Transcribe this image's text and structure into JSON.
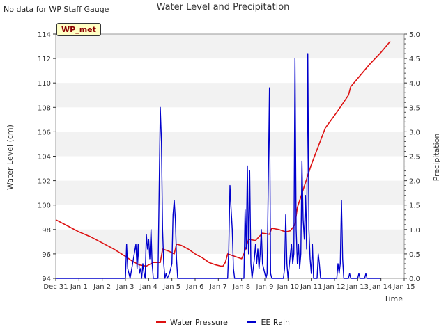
{
  "header": {
    "note": "No data for WP Staff Gauge",
    "title": "Water Level and Precipitation",
    "badge": "WP_met"
  },
  "legend": {
    "items": [
      {
        "label": "Water Pressure",
        "color": "#dd1111"
      },
      {
        "label": "EE Rain",
        "color": "#0000cc"
      }
    ]
  },
  "chart_data": {
    "type": "line",
    "title": "Water Level and Precipitation",
    "xlabel": "Time",
    "ylabel": "Water Level (cm)",
    "y2label": "Precipitation",
    "x_ticks": [
      "Dec 31",
      "Jan 1",
      "Jan 2",
      "Jan 3",
      "Jan 4",
      "Jan 5",
      "Jan 6",
      "Jan 7",
      "Jan 8",
      "Jan 9",
      "Jan 10",
      "Jan 11",
      "Jan 12",
      "Jan 13",
      "Jan 14",
      "Jan 15"
    ],
    "xlim": [
      0,
      15
    ],
    "ylim": [
      94,
      114
    ],
    "y_ticks": [
      "94",
      "96",
      "98",
      "100",
      "102",
      "104",
      "106",
      "108",
      "110",
      "112",
      "114"
    ],
    "y2lim": [
      0,
      5
    ],
    "y2_ticks": [
      "0.0",
      "0.5",
      "1.0",
      "1.5",
      "2.0",
      "2.5",
      "3.0",
      "3.5",
      "4.0",
      "4.5",
      "5.0"
    ],
    "grid": "horizontal bands",
    "series": [
      {
        "name": "Water Pressure",
        "axis": "left",
        "color": "#dd1111",
        "points": [
          [
            0.0,
            98.8
          ],
          [
            0.5,
            98.3
          ],
          [
            1.0,
            97.8
          ],
          [
            1.5,
            97.4
          ],
          [
            2.0,
            96.9
          ],
          [
            2.5,
            96.4
          ],
          [
            3.0,
            95.8
          ],
          [
            3.3,
            95.4
          ],
          [
            3.6,
            95.1
          ],
          [
            3.9,
            95.0
          ],
          [
            4.2,
            95.3
          ],
          [
            4.5,
            95.3
          ],
          [
            4.6,
            96.4
          ],
          [
            4.9,
            96.2
          ],
          [
            5.1,
            96.0
          ],
          [
            5.2,
            96.8
          ],
          [
            5.4,
            96.7
          ],
          [
            5.7,
            96.4
          ],
          [
            6.0,
            96.0
          ],
          [
            6.3,
            95.7
          ],
          [
            6.6,
            95.3
          ],
          [
            6.9,
            95.1
          ],
          [
            7.1,
            95.0
          ],
          [
            7.2,
            95.0
          ],
          [
            7.3,
            95.3
          ],
          [
            7.4,
            96.0
          ],
          [
            7.7,
            95.8
          ],
          [
            8.0,
            95.6
          ],
          [
            8.1,
            96.0
          ],
          [
            8.3,
            97.2
          ],
          [
            8.6,
            97.1
          ],
          [
            8.9,
            97.7
          ],
          [
            9.2,
            97.6
          ],
          [
            9.3,
            98.1
          ],
          [
            9.6,
            98.0
          ],
          [
            9.9,
            97.8
          ],
          [
            10.1,
            97.9
          ],
          [
            10.3,
            98.4
          ],
          [
            10.4,
            99.8
          ],
          [
            11.0,
            103.3
          ],
          [
            11.6,
            106.3
          ],
          [
            12.1,
            107.6
          ],
          [
            12.6,
            109.0
          ],
          [
            12.7,
            109.7
          ],
          [
            13.1,
            110.6
          ],
          [
            13.5,
            111.5
          ],
          [
            14.0,
            112.5
          ],
          [
            14.4,
            113.4
          ]
        ]
      },
      {
        "name": "EE Rain",
        "axis": "right",
        "color": "#0000cc",
        "points": [
          [
            0.0,
            0.0
          ],
          [
            3.0,
            0.0
          ],
          [
            3.05,
            0.7
          ],
          [
            3.1,
            0.2
          ],
          [
            3.2,
            0.0
          ],
          [
            3.45,
            0.7
          ],
          [
            3.5,
            0.2
          ],
          [
            3.55,
            0.7
          ],
          [
            3.6,
            0.1
          ],
          [
            3.65,
            0.2
          ],
          [
            3.7,
            0.0
          ],
          [
            3.75,
            0.3
          ],
          [
            3.8,
            0.1
          ],
          [
            3.85,
            0.0
          ],
          [
            3.9,
            0.9
          ],
          [
            3.95,
            0.6
          ],
          [
            4.0,
            0.8
          ],
          [
            4.05,
            0.4
          ],
          [
            4.1,
            1.0
          ],
          [
            4.15,
            0.3
          ],
          [
            4.2,
            0.0
          ],
          [
            4.4,
            0.0
          ],
          [
            4.45,
            1.7
          ],
          [
            4.5,
            3.5
          ],
          [
            4.55,
            2.8
          ],
          [
            4.6,
            1.0
          ],
          [
            4.65,
            0.3
          ],
          [
            4.7,
            0.0
          ],
          [
            4.75,
            0.1
          ],
          [
            4.8,
            0.0
          ],
          [
            4.9,
            0.1
          ],
          [
            5.0,
            0.3
          ],
          [
            5.05,
            1.3
          ],
          [
            5.1,
            1.6
          ],
          [
            5.15,
            1.2
          ],
          [
            5.2,
            0.4
          ],
          [
            5.25,
            0.0
          ],
          [
            7.4,
            0.0
          ],
          [
            7.45,
            0.6
          ],
          [
            7.5,
            1.9
          ],
          [
            7.55,
            1.4
          ],
          [
            7.6,
            1.0
          ],
          [
            7.65,
            0.2
          ],
          [
            7.7,
            0.0
          ],
          [
            8.1,
            0.0
          ],
          [
            8.15,
            1.4
          ],
          [
            8.2,
            0.6
          ],
          [
            8.25,
            2.3
          ],
          [
            8.3,
            0.5
          ],
          [
            8.35,
            2.2
          ],
          [
            8.4,
            0.3
          ],
          [
            8.45,
            0.0
          ],
          [
            8.55,
            0.4
          ],
          [
            8.6,
            0.7
          ],
          [
            8.65,
            0.3
          ],
          [
            8.7,
            0.6
          ],
          [
            8.75,
            0.2
          ],
          [
            8.8,
            0.5
          ],
          [
            8.85,
            1.0
          ],
          [
            8.9,
            0.3
          ],
          [
            9.0,
            0.1
          ],
          [
            9.05,
            0.0
          ],
          [
            9.1,
            0.1
          ],
          [
            9.2,
            3.9
          ],
          [
            9.25,
            0.1
          ],
          [
            9.3,
            0.0
          ],
          [
            9.8,
            0.0
          ],
          [
            9.85,
            0.2
          ],
          [
            9.9,
            1.3
          ],
          [
            9.95,
            0.3
          ],
          [
            10.0,
            0.0
          ],
          [
            10.1,
            0.5
          ],
          [
            10.15,
            0.7
          ],
          [
            10.2,
            0.3
          ],
          [
            10.25,
            0.5
          ],
          [
            10.3,
            4.5
          ],
          [
            10.35,
            1.0
          ],
          [
            10.4,
            0.3
          ],
          [
            10.45,
            0.7
          ],
          [
            10.5,
            0.2
          ],
          [
            10.55,
            0.5
          ],
          [
            10.6,
            2.4
          ],
          [
            10.65,
            1.2
          ],
          [
            10.7,
            0.8
          ],
          [
            10.75,
            1.7
          ],
          [
            10.8,
            0.6
          ],
          [
            10.85,
            4.6
          ],
          [
            10.9,
            1.0
          ],
          [
            10.95,
            0.4
          ],
          [
            11.0,
            0.1
          ],
          [
            11.05,
            0.7
          ],
          [
            11.1,
            0.0
          ],
          [
            11.25,
            0.0
          ],
          [
            11.3,
            0.5
          ],
          [
            11.35,
            0.3
          ],
          [
            11.4,
            0.0
          ],
          [
            12.1,
            0.0
          ],
          [
            12.15,
            0.3
          ],
          [
            12.2,
            0.1
          ],
          [
            12.25,
            0.3
          ],
          [
            12.3,
            1.6
          ],
          [
            12.35,
            0.4
          ],
          [
            12.4,
            0.0
          ],
          [
            12.6,
            0.0
          ],
          [
            12.65,
            0.1
          ],
          [
            12.7,
            0.0
          ],
          [
            13.0,
            0.0
          ],
          [
            13.05,
            0.1
          ],
          [
            13.1,
            0.0
          ],
          [
            13.3,
            0.0
          ],
          [
            13.35,
            0.1
          ],
          [
            13.4,
            0.0
          ],
          [
            14.0,
            0.0
          ]
        ]
      }
    ]
  }
}
